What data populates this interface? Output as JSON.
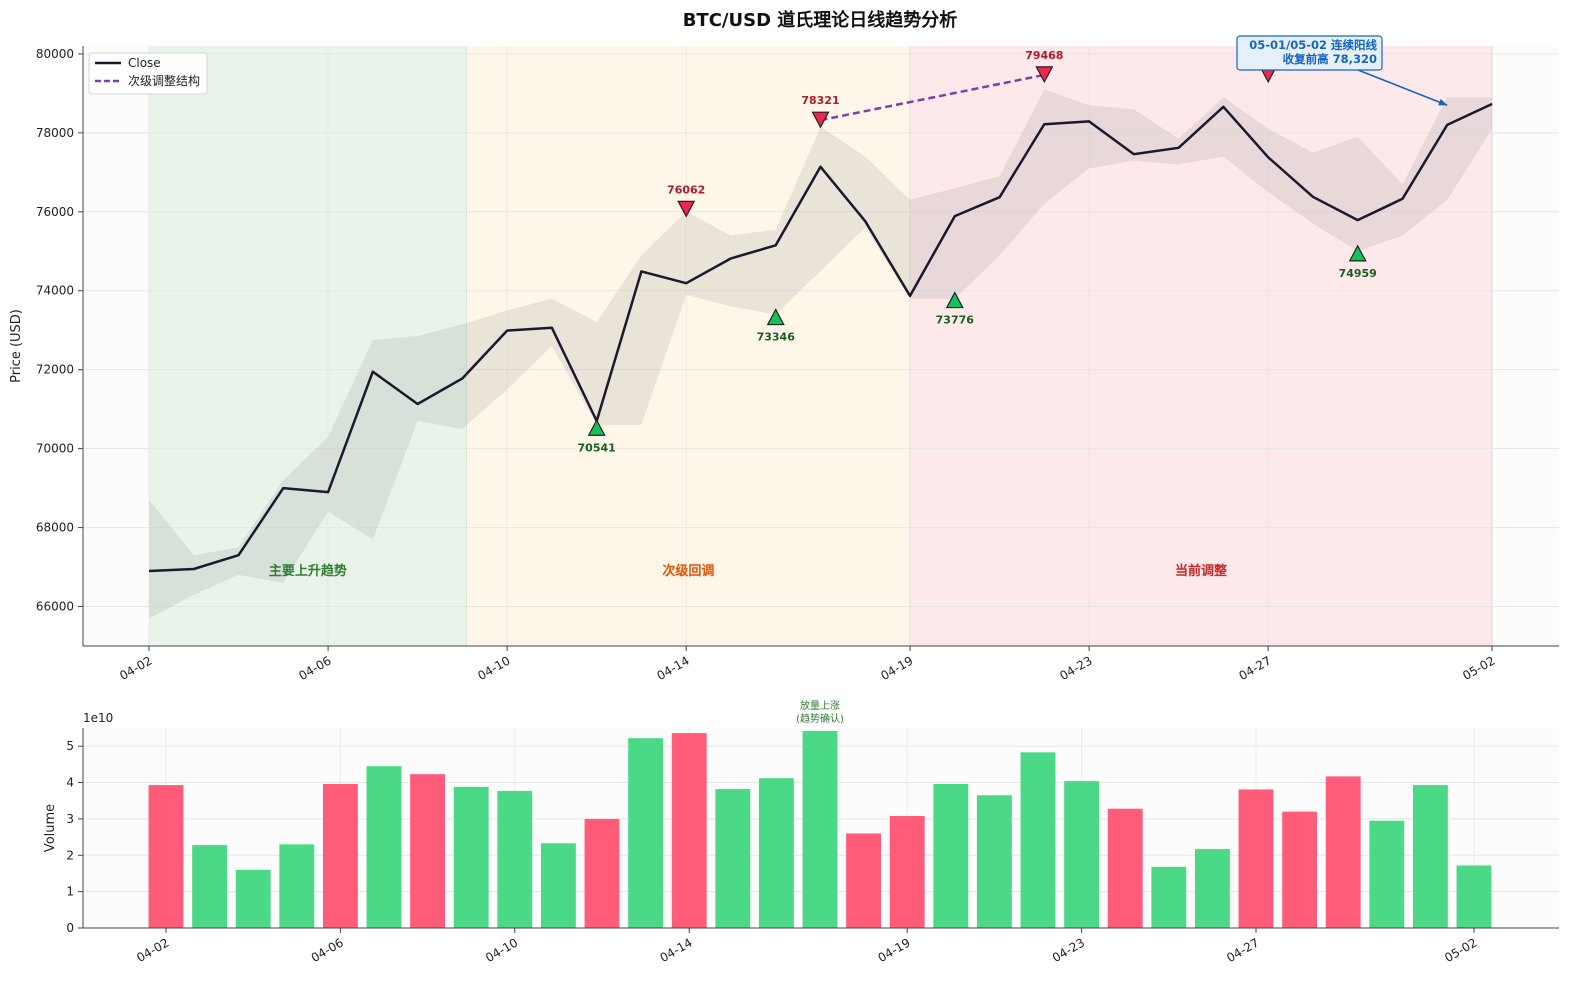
{
  "chart_data": [
    {
      "type": "line",
      "title": "BTC/USD 道氏理论日线趋势分析",
      "ylabel": "Price (USD)",
      "xlabel": "",
      "ylim": [
        65000,
        80200
      ],
      "yticks": [
        "66000",
        "68000",
        "70000",
        "72000",
        "74000",
        "76000",
        "78000",
        "80000"
      ],
      "xtick_labels": [
        "04-02",
        "04-06",
        "04-10",
        "04-14",
        "04-19",
        "04-23",
        "04-27",
        "05-02"
      ],
      "x": [
        "04-02",
        "04-03",
        "04-04",
        "04-05",
        "04-06",
        "04-07",
        "04-08",
        "04-09",
        "04-10",
        "04-11",
        "04-12",
        "04-13",
        "04-14",
        "04-15",
        "04-16",
        "04-17",
        "04-18",
        "04-19",
        "04-20",
        "04-21",
        "04-22",
        "04-23",
        "04-24",
        "04-25",
        "04-26",
        "04-27",
        "04-28",
        "04-29",
        "04-30",
        "05-01",
        "05-02"
      ],
      "series": [
        {
          "name": "Close",
          "color": "#1a1a2e",
          "values": [
            66900,
            66950,
            67300,
            69000,
            68900,
            71950,
            71130,
            71780,
            72990,
            73060,
            70700,
            74490,
            74190,
            74820,
            75150,
            77140,
            75760,
            73870,
            75890,
            76370,
            78220,
            78290,
            77460,
            77620,
            78660,
            77380,
            76380,
            75790,
            76330,
            78200,
            78730
          ]
        }
      ],
      "range_band": {
        "color": "#8e8e8e",
        "high": [
          68700,
          67300,
          67500,
          69200,
          70300,
          72750,
          72850,
          73150,
          73500,
          73800,
          73200,
          74900,
          76000,
          75400,
          75550,
          78150,
          77400,
          76300,
          76600,
          76900,
          79100,
          78700,
          78600,
          77850,
          78900,
          78100,
          77500,
          77900,
          76700,
          78900,
          78900
        ],
        "low": [
          65700,
          66300,
          66800,
          66600,
          68400,
          67700,
          70700,
          70500,
          71500,
          72600,
          70600,
          70600,
          73900,
          73600,
          73400,
          74500,
          75600,
          73800,
          73800,
          74900,
          76200,
          77100,
          77300,
          77200,
          77400,
          76500,
          75700,
          75000,
          75400,
          76300,
          78100
        ]
      },
      "secondary_structure": {
        "name": "次级调整结构",
        "color": "#7d3fb0",
        "from": {
          "x": "04-17",
          "y": 78321
        },
        "to": {
          "x": "04-22",
          "y": 79468
        }
      },
      "peaks": [
        {
          "x": "04-14",
          "y": 76062,
          "label": "76062"
        },
        {
          "x": "04-17",
          "y": 78321,
          "label": "78321"
        },
        {
          "x": "04-22",
          "y": 79468,
          "label": "79468"
        },
        {
          "x": "04-27",
          "y": 79468,
          "label": ""
        }
      ],
      "troughs": [
        {
          "x": "04-12",
          "y": 70541,
          "label": "70541"
        },
        {
          "x": "04-16",
          "y": 73346,
          "label": "73346"
        },
        {
          "x": "04-20",
          "y": 73776,
          "label": "73776"
        },
        {
          "x": "04-29",
          "y": 74959,
          "label": "74959"
        }
      ],
      "regions": [
        {
          "label": "主要上升趋势",
          "from": "04-02",
          "to": "04-09.1",
          "color": "#2e7d32",
          "fill": "#e8f3e9"
        },
        {
          "label": "次级回调",
          "from": "04-09.1",
          "to": "04-19",
          "color": "#e65100",
          "fill": "#fef6e8"
        },
        {
          "label": "当前调整",
          "from": "04-19",
          "to": "05-02",
          "color": "#c62828",
          "fill": "#fde8ea"
        }
      ],
      "annotation": {
        "lines": [
          "05-01/05-02 连续阳线",
          "收复前高 78,320"
        ],
        "color": "#1565c0",
        "target": {
          "x": "05-01",
          "y": 78700
        }
      },
      "legend": {
        "placement": "top-left",
        "entries": [
          "Close",
          "次级调整结构"
        ]
      },
      "grid": true
    },
    {
      "type": "bar",
      "ylabel": "Volume",
      "scale_label": "1e10",
      "ylim": [
        0,
        5.5
      ],
      "yticks": [
        "0",
        "1",
        "2",
        "3",
        "4",
        "5"
      ],
      "xtick_labels": [
        "04-02",
        "04-06",
        "04-10",
        "04-14",
        "04-19",
        "04-23",
        "04-27",
        "05-02"
      ],
      "up_color": "#4cd987",
      "down_color": "#ff5c7a",
      "values": [
        3.93,
        2.28,
        1.6,
        2.3,
        3.96,
        4.45,
        4.23,
        3.88,
        3.77,
        2.33,
        3.0,
        5.22,
        5.36,
        3.82,
        4.12,
        5.42,
        2.6,
        3.08,
        3.96,
        3.65,
        4.83,
        4.04,
        3.28,
        1.68,
        2.17,
        3.81,
        3.2,
        4.17,
        2.95,
        3.93,
        1.72
      ],
      "directions": [
        "down",
        "up",
        "up",
        "up",
        "down",
        "up",
        "down",
        "up",
        "up",
        "up",
        "down",
        "up",
        "down",
        "up",
        "up",
        "up",
        "down",
        "down",
        "up",
        "up",
        "up",
        "up",
        "down",
        "up",
        "up",
        "down",
        "down",
        "down",
        "up",
        "up",
        "up"
      ],
      "annotation": {
        "lines": [
          "放量上涨",
          "(趋势确认)"
        ],
        "x_index": 15,
        "color": "#2e7d32"
      },
      "grid": true
    }
  ]
}
